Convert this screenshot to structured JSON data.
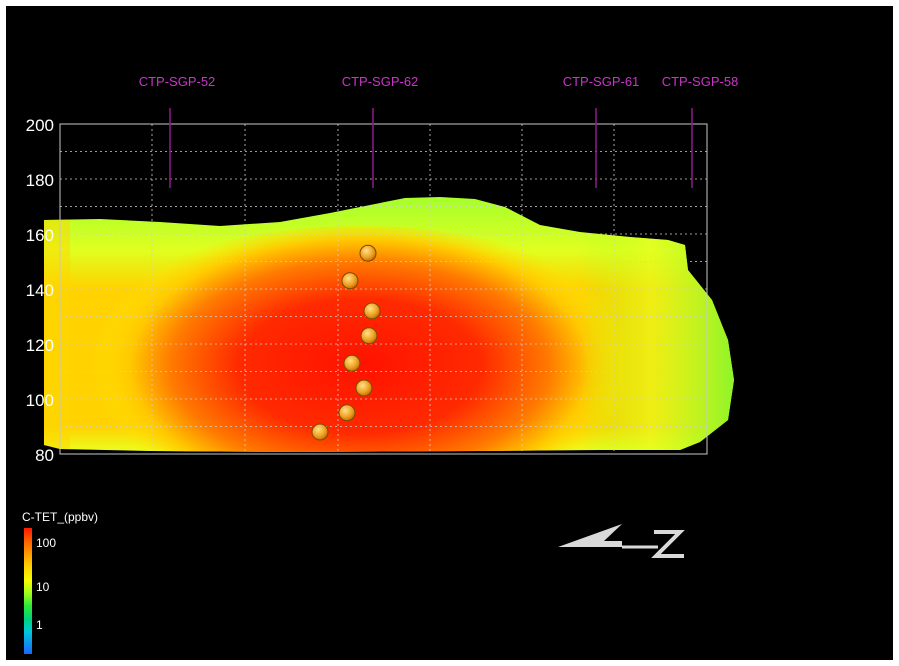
{
  "chart_data": {
    "type": "heatmap",
    "title": "",
    "xlabel": "",
    "ylabel": "",
    "ylim": [
      80,
      200
    ],
    "yticks": [
      80,
      100,
      120,
      140,
      160,
      180,
      200
    ],
    "grid": true,
    "wells": [
      "CTP-SGP-52",
      "CTP-SGP-62",
      "CTP-SGP-61",
      "CTP-SGP-58"
    ],
    "samples_elevation": [
      88,
      95,
      104,
      113,
      123,
      132,
      143,
      153
    ],
    "legend": {
      "title": "C-TET_(ppbv)",
      "scale": "log",
      "ticks": [
        "100",
        "10",
        "1"
      ]
    },
    "colors": {
      "well_label": "#cc33cc",
      "well_line": "#8a1d8a",
      "max": "#ff1a00",
      "mid": "#ffd000",
      "low": "#9dff1e"
    }
  },
  "north_arrow_label": "N"
}
